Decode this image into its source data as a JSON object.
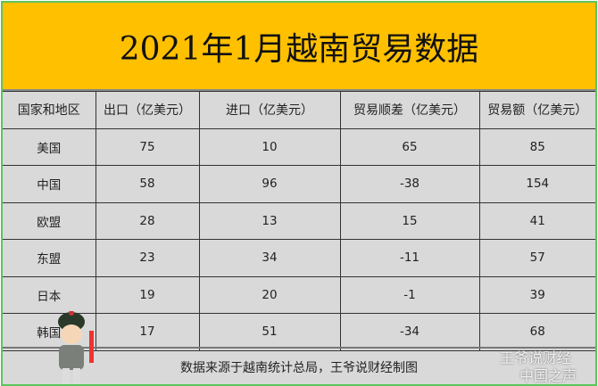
{
  "title": "2021年1月越南贸易数据",
  "table": {
    "headers": [
      "国家和地区",
      "出口（亿美元）",
      "进口（亿美元）",
      "贸易顺差（亿美元）",
      "贸易额（亿美元）"
    ],
    "rows": [
      [
        "美国",
        "75",
        "10",
        "65",
        "85"
      ],
      [
        "中国",
        "58",
        "96",
        "-38",
        "154"
      ],
      [
        "欧盟",
        "28",
        "13",
        "15",
        "41"
      ],
      [
        "东盟",
        "23",
        "34",
        "-11",
        "57"
      ],
      [
        "日本",
        "19",
        "20",
        "-1",
        "39"
      ],
      [
        "韩国",
        "17",
        "51",
        "-34",
        "68"
      ]
    ]
  },
  "footer": "数据来源于越南统计总局，王爷说财经制图",
  "watermarks": {
    "wechat": "王爷说财经",
    "weibo": "中国之声"
  },
  "colors": {
    "title_bg": "#ffc000",
    "border": "#5cc45c",
    "cell_bg": "#d9d9d9"
  }
}
